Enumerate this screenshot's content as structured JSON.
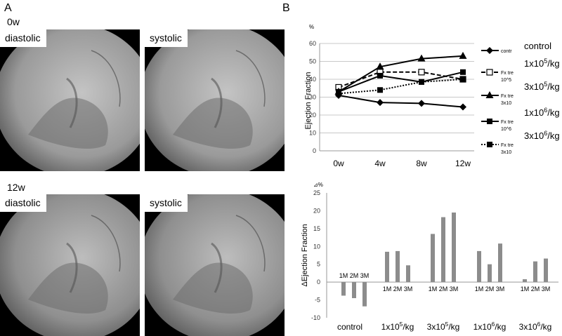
{
  "panelA": {
    "letter": "A",
    "rows": [
      {
        "label": "0w",
        "frames": [
          {
            "label": "diastolic",
            "icon": "angiogram-xray-image"
          },
          {
            "label": "systolic",
            "icon": "angiogram-xray-image"
          }
        ]
      },
      {
        "label": "12w",
        "frames": [
          {
            "label": "diastolic",
            "icon": "angiogram-xray-image"
          },
          {
            "label": "systolic",
            "icon": "angiogram-xray-image"
          }
        ]
      }
    ]
  },
  "panelB": {
    "letter": "B"
  },
  "chart_data": [
    {
      "type": "line",
      "title": "",
      "unit_label": "%",
      "xlabel": "",
      "ylabel": "Ejection Fraction",
      "x": [
        "0w",
        "4w",
        "8w",
        "12w"
      ],
      "ylim": [
        0,
        60
      ],
      "yticks": [
        0,
        10,
        20,
        30,
        40,
        50,
        60
      ],
      "grid": true,
      "legend_position": "right",
      "series": [
        {
          "name": "contr",
          "label": "control",
          "marker": "diamond",
          "style": "solid",
          "values": [
            31,
            27,
            26.5,
            24.5
          ]
        },
        {
          "name": "Fx tre",
          "sub": "10^5",
          "label": "1x10",
          "sup": "5",
          "suffix": "/kg",
          "marker": "open-square",
          "style": "dashed",
          "values": [
            35.5,
            44,
            44,
            40
          ]
        },
        {
          "name": "Fx tre",
          "sub": "3x10",
          "label": "3x10",
          "sup": "5",
          "suffix": "/kg",
          "marker": "triangle",
          "style": "solid",
          "values": [
            33,
            47,
            51.5,
            53
          ]
        },
        {
          "name": "Fx tre",
          "sub": "10^6",
          "label": "1x10",
          "sup": "6",
          "suffix": "/kg",
          "marker": "square",
          "style": "solid",
          "values": [
            33,
            42,
            38.5,
            44
          ]
        },
        {
          "name": "Fx tre",
          "sub": "3x10",
          "label": "3x10",
          "sup": "6",
          "suffix": "/kg",
          "marker": "square",
          "style": "dotted",
          "values": [
            32,
            34,
            38.5,
            40
          ]
        }
      ]
    },
    {
      "type": "bar",
      "title": "",
      "unit_label": "⊿%",
      "xlabel": "",
      "ylabel": "ΔEjection Fraction",
      "ylim": [
        -10,
        25
      ],
      "yticks": [
        -10,
        -5,
        0,
        5,
        10,
        15,
        20,
        25
      ],
      "grid": false,
      "bar_color": "#8c8c8c",
      "bar_labels": [
        "1M",
        "2M",
        "3M"
      ],
      "groups": [
        {
          "label": "control",
          "sup": "",
          "suffix": "",
          "values": [
            -3.8,
            -4.5,
            -6.8
          ],
          "labels_position": "above"
        },
        {
          "label": "1x10",
          "sup": "5",
          "suffix": "/kg",
          "values": [
            8.5,
            8.7,
            4.7
          ],
          "labels_position": "below"
        },
        {
          "label": "3x10",
          "sup": "5",
          "suffix": "/kg",
          "values": [
            13.5,
            18.2,
            19.5
          ],
          "labels_position": "below"
        },
        {
          "label": "1x10",
          "sup": "6",
          "suffix": "/kg",
          "values": [
            8.7,
            5.0,
            10.8
          ],
          "labels_position": "below"
        },
        {
          "label": "3x10",
          "sup": "6",
          "suffix": "/kg",
          "values": [
            0.8,
            5.8,
            6.6
          ],
          "labels_position": "below"
        }
      ]
    }
  ]
}
